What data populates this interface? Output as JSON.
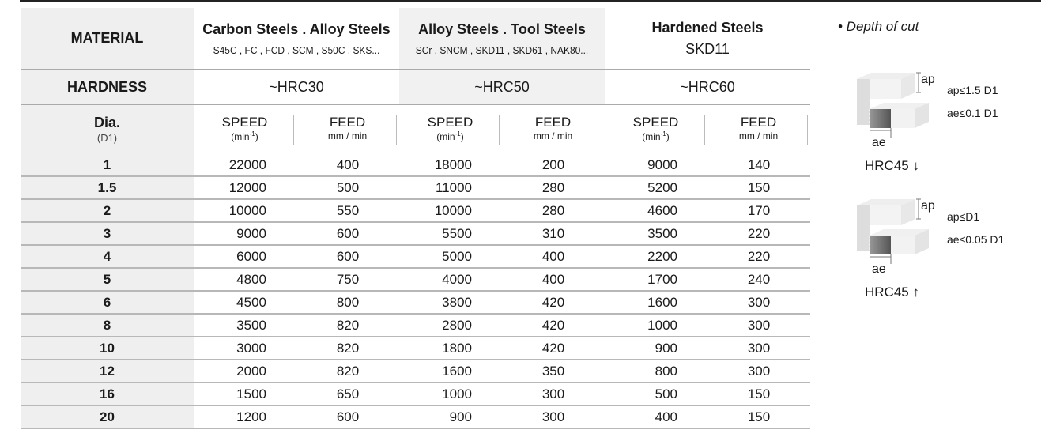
{
  "material_label": "MATERIAL",
  "hardness_label": "HARDNESS",
  "dia_label": "Dia.",
  "dia_unit": "(D1)",
  "groups": [
    {
      "title": "Carbon Steels . Alloy Steels",
      "sub": "S45C , FC , FCD , SCM , S50C , SKS...",
      "hardness": "~HRC30"
    },
    {
      "title": "Alloy  Steels . Tool Steels",
      "sub": "SCr , SNCM , SKD11 , SKD61 , NAK80...",
      "hardness": "~HRC50"
    },
    {
      "title": "Hardened Steels",
      "sub": "SKD11",
      "hardness": "~HRC60"
    }
  ],
  "speed_label": "SPEED",
  "speed_unit": "(min-1)",
  "speed_unit_base": "(min",
  "speed_unit_sup": "-1",
  "speed_unit_end": ")",
  "feed_label": "FEED",
  "feed_unit": "mm / min",
  "rows": [
    [
      "1",
      "22000",
      "400",
      "18000",
      "200",
      "9000",
      "140"
    ],
    [
      "1.5",
      "12000",
      "500",
      "11000",
      "280",
      "5200",
      "150"
    ],
    [
      "2",
      "10000",
      "550",
      "10000",
      "280",
      "4600",
      "170"
    ],
    [
      "3",
      "9000",
      "600",
      "5500",
      "310",
      "3500",
      "220"
    ],
    [
      "4",
      "6000",
      "600",
      "5000",
      "400",
      "2200",
      "220"
    ],
    [
      "5",
      "4800",
      "750",
      "4000",
      "400",
      "1700",
      "240"
    ],
    [
      "6",
      "4500",
      "800",
      "3800",
      "420",
      "1600",
      "300"
    ],
    [
      "8",
      "3500",
      "820",
      "2800",
      "420",
      "1000",
      "300"
    ],
    [
      "10",
      "3000",
      "820",
      "1800",
      "420",
      "900",
      "300"
    ],
    [
      "12",
      "2000",
      "820",
      "1600",
      "350",
      "800",
      "300"
    ],
    [
      "16",
      "1500",
      "650",
      "1000",
      "300",
      "500",
      "150"
    ],
    [
      "20",
      "1200",
      "600",
      "900",
      "300",
      "400",
      "150"
    ]
  ],
  "depth": {
    "title": "• Depth of cut",
    "ap": "ap",
    "ae": "ae",
    "cases": [
      {
        "ap_limit": "ap≤1.5 D1",
        "ae_limit": "ae≤0.1 D1",
        "hrc": "HRC45 ↓"
      },
      {
        "ap_limit": "ap≤D1",
        "ae_limit": "ae≤0.05 D1",
        "hrc": "HRC45 ↑"
      }
    ]
  }
}
